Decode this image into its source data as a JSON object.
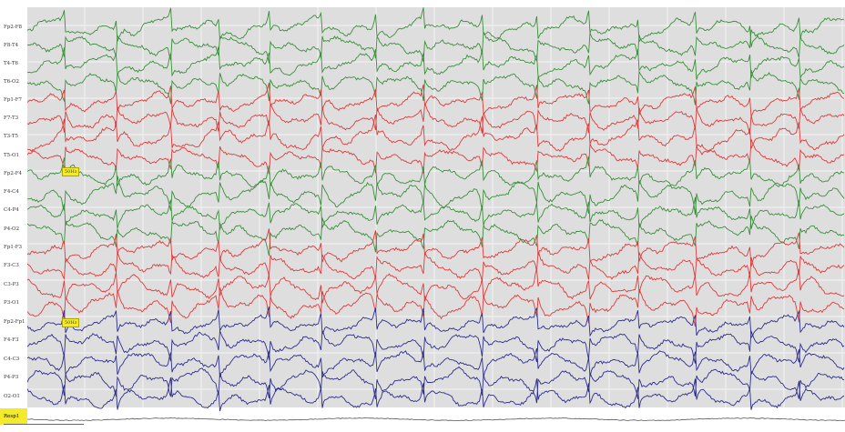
{
  "channels": [
    {
      "label": "Fp2-F8",
      "group": "right"
    },
    {
      "label": "F8-T4",
      "group": "right"
    },
    {
      "label": "T4-T6",
      "group": "right"
    },
    {
      "label": "T6-O2",
      "group": "right"
    },
    {
      "label": "Fp1-F7",
      "group": "left"
    },
    {
      "label": "F7-T3",
      "group": "left"
    },
    {
      "label": "T3-T5",
      "group": "left"
    },
    {
      "label": "T5-O1",
      "group": "left"
    },
    {
      "label": "Fp2-F4",
      "group": "right"
    },
    {
      "label": "F4-C4",
      "group": "right"
    },
    {
      "label": "C4-P4",
      "group": "right"
    },
    {
      "label": "P4-O2",
      "group": "right"
    },
    {
      "label": "Fp1-F3",
      "group": "left"
    },
    {
      "label": "F3-C3",
      "group": "left"
    },
    {
      "label": "C3-P3",
      "group": "left"
    },
    {
      "label": "P3-O1",
      "group": "left"
    },
    {
      "label": "Fp2-Fp1",
      "group": "transverse"
    },
    {
      "label": "F4-F3",
      "group": "transverse"
    },
    {
      "label": "C4-C3",
      "group": "transverse"
    },
    {
      "label": "P4-P3",
      "group": "transverse"
    },
    {
      "label": "O2-O1",
      "group": "transverse"
    }
  ],
  "resp_channel": {
    "label": "Resp1"
  },
  "markers": [
    {
      "text": "50Hz"
    },
    {
      "text": "50Hz"
    }
  ],
  "colors": {
    "right": "#3a8f3a",
    "left": "#dd3b3b",
    "transverse": "#2d2d8c",
    "resp": "#555555",
    "background": "#dedede",
    "gridline": "#f4f4f4",
    "marker_bg": "#f2ea2a"
  }
}
